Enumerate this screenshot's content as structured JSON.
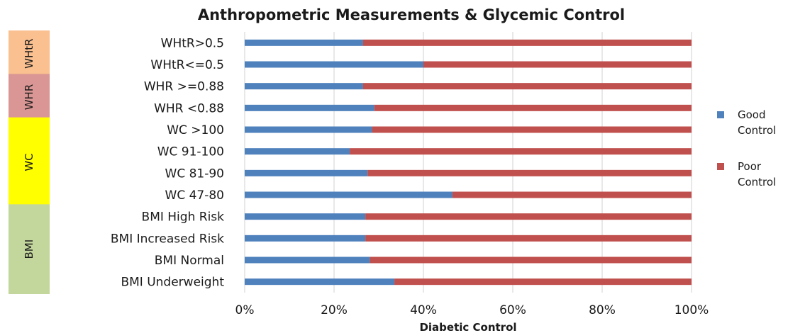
{
  "chart_data": {
    "type": "bar",
    "orientation": "horizontal",
    "stacked": "percent",
    "title": "Anthropometric Measurements & Glycemic Control",
    "xlabel": "Diabetic Control",
    "ylabel": "",
    "xlim": [
      0,
      100
    ],
    "x_ticks": [
      "0%",
      "20%",
      "40%",
      "60%",
      "80%",
      "100%"
    ],
    "grid": true,
    "legend_position": "right",
    "categories": [
      "WHtR>0.5",
      "WHtR<=0.5",
      "WHR >=0.88",
      "WHR <0.88",
      "WC >100",
      "WC 91-100",
      "WC 81-90",
      "WC 47-80",
      "BMI High Risk",
      "BMI Increased Risk",
      "BMI Normal",
      "BMI Underweight"
    ],
    "series": [
      {
        "name": "Good Control",
        "legend_lines": [
          "Good",
          "Control"
        ],
        "color": "#4f81bd",
        "values": [
          26.5,
          40,
          26.5,
          29,
          28.5,
          23.5,
          27.5,
          46.5,
          27,
          27,
          28,
          33.5
        ]
      },
      {
        "name": "Poor Control",
        "legend_lines": [
          "Poor",
          "Control"
        ],
        "color": "#c0504d",
        "values": [
          73.5,
          60,
          73.5,
          71,
          71.5,
          76.5,
          72.5,
          53.5,
          73,
          73,
          72,
          66.5
        ]
      }
    ],
    "groups": [
      {
        "label": "WHtR",
        "color": "#fac090",
        "rows": [
          0,
          1
        ]
      },
      {
        "label": "WHR",
        "color": "#d99694",
        "rows": [
          2,
          3
        ]
      },
      {
        "label": "WC",
        "color": "#ffff00",
        "rows": [
          4,
          5,
          6,
          7
        ]
      },
      {
        "label": "BMI",
        "color": "#c3d69b",
        "rows": [
          8,
          9,
          10,
          11
        ]
      }
    ]
  }
}
